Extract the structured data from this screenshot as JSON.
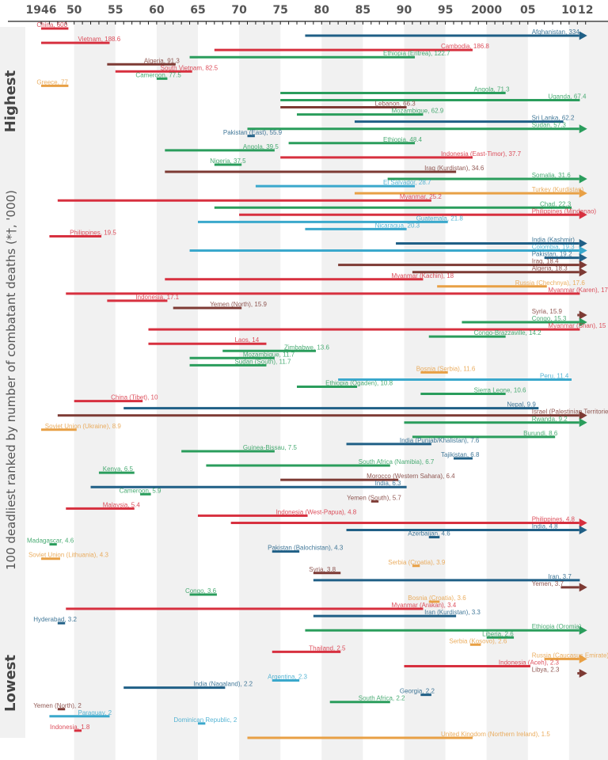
{
  "chart_data": {
    "type": "bar",
    "subtype": "timeline-range",
    "title": "",
    "ylabel": "100 deadliest ranked by number of combatant deaths (*†, '000)",
    "xlabel": "",
    "xlim": [
      1946,
      2012
    ],
    "x_tick_labels": [
      {
        "year": 1946,
        "label": "1946"
      },
      {
        "year": 1950,
        "label": "50"
      },
      {
        "year": 1955,
        "label": "55"
      },
      {
        "year": 1960,
        "label": "60"
      },
      {
        "year": 1965,
        "label": "65"
      },
      {
        "year": 1970,
        "label": "70"
      },
      {
        "year": 1975,
        "label": "75"
      },
      {
        "year": 1980,
        "label": "80"
      },
      {
        "year": 1985,
        "label": "85"
      },
      {
        "year": 1990,
        "label": "90"
      },
      {
        "year": 1995,
        "label": "95"
      },
      {
        "year": 2000,
        "label": "2000"
      },
      {
        "year": 2005,
        "label": "05"
      },
      {
        "year": 2010,
        "label": "10"
      },
      {
        "year": 2012,
        "label": "12"
      }
    ],
    "rank_labels": {
      "top": "Highest",
      "bottom": "Lowest"
    },
    "colors": {
      "red": "#d7303f",
      "green": "#2a9d5c",
      "navy": "#1f5f86",
      "blue": "#3aa8cc",
      "brown": "#7d3a34",
      "orange": "#e8a045",
      "band": "#f1f1f1",
      "axis": "#222222"
    },
    "series": [
      {
        "name": "China",
        "value": 600,
        "start": 1946,
        "end": 1949,
        "ongoing": false,
        "color": "red"
      },
      {
        "name": "Afghanistan",
        "value": 334,
        "start": 1978,
        "end": 2012,
        "ongoing": true,
        "color": "navy"
      },
      {
        "name": "Vietnam",
        "value": 188.6,
        "start": 1946,
        "end": 1954,
        "ongoing": false,
        "color": "red"
      },
      {
        "name": "Cambodia",
        "value": 186.8,
        "start": 1967,
        "end": 1998,
        "ongoing": false,
        "color": "red"
      },
      {
        "name": "Ethiopia (Eritrea)",
        "value": 122.7,
        "start": 1964,
        "end": 1991,
        "ongoing": false,
        "color": "green"
      },
      {
        "name": "Algeria",
        "value": 91.3,
        "start": 1954,
        "end": 1962,
        "ongoing": false,
        "color": "brown"
      },
      {
        "name": "South Vietnam",
        "value": 82.5,
        "start": 1955,
        "end": 1964,
        "ongoing": false,
        "color": "red"
      },
      {
        "name": "Cameroon",
        "value": 77.5,
        "start": 1960,
        "end": 1961,
        "ongoing": false,
        "color": "green"
      },
      {
        "name": "Greece",
        "value": 77,
        "start": 1946,
        "end": 1949,
        "ongoing": false,
        "color": "orange"
      },
      {
        "name": "Angola",
        "value": 71.3,
        "start": 1975,
        "end": 2002,
        "ongoing": false,
        "color": "green"
      },
      {
        "name": "Uganda",
        "value": 67.4,
        "start": 1975,
        "end": 2011,
        "ongoing": false,
        "color": "green"
      },
      {
        "name": "Lebanon",
        "value": 66.3,
        "start": 1975,
        "end": 1990,
        "ongoing": false,
        "color": "brown"
      },
      {
        "name": "Mozambique",
        "value": 62.9,
        "start": 1977,
        "end": 1992,
        "ongoing": false,
        "color": "green"
      },
      {
        "name": "Sri Lanka",
        "value": 62.2,
        "start": 1984,
        "end": 2009,
        "ongoing": false,
        "color": "navy"
      },
      {
        "name": "Sudan",
        "value": 57.3,
        "start": 1971,
        "end": 2012,
        "ongoing": true,
        "color": "green"
      },
      {
        "name": "Pakistan (East)",
        "value": 55.9,
        "start": 1971,
        "end": 1971,
        "ongoing": false,
        "color": "navy"
      },
      {
        "name": "Ethiopia",
        "value": 48.4,
        "start": 1976,
        "end": 1991,
        "ongoing": false,
        "color": "green"
      },
      {
        "name": "Angola",
        "value": 39.5,
        "start": 1961,
        "end": 1974,
        "ongoing": false,
        "color": "green"
      },
      {
        "name": "Indonesia (East-Timor)",
        "value": 37.7,
        "start": 1975,
        "end": 1998,
        "ongoing": false,
        "color": "red"
      },
      {
        "name": "Nigeria",
        "value": 37.5,
        "start": 1967,
        "end": 1970,
        "ongoing": false,
        "color": "green"
      },
      {
        "name": "Iraq (Kurdistan)",
        "value": 34.6,
        "start": 1961,
        "end": 1996,
        "ongoing": false,
        "color": "brown"
      },
      {
        "name": "Somalia",
        "value": 31.6,
        "start": 1988,
        "end": 2012,
        "ongoing": true,
        "color": "green"
      },
      {
        "name": "El Salvador",
        "value": 28.7,
        "start": 1972,
        "end": 1991,
        "ongoing": false,
        "color": "blue"
      },
      {
        "name": "Turkey (Kurdistan)",
        "value": null,
        "start": 1984,
        "end": 2012,
        "ongoing": true,
        "color": "orange"
      },
      {
        "name": "Myanmar",
        "value": 25.2,
        "start": 1948,
        "end": 1993,
        "ongoing": false,
        "color": "red"
      },
      {
        "name": "Chad",
        "value": 22.3,
        "start": 1967,
        "end": 2010,
        "ongoing": false,
        "color": "green"
      },
      {
        "name": "Philippines (Mindanao)",
        "value": null,
        "start": 1970,
        "end": 2012,
        "ongoing": true,
        "color": "red"
      },
      {
        "name": "Guatemala",
        "value": 21.8,
        "start": 1965,
        "end": 1995,
        "ongoing": false,
        "color": "blue"
      },
      {
        "name": "Nicaragua",
        "value": 20.3,
        "start": 1978,
        "end": 1990,
        "ongoing": false,
        "color": "blue"
      },
      {
        "name": "Philippines",
        "value": 19.5,
        "start": 1947,
        "end": 1953,
        "ongoing": false,
        "color": "red"
      },
      {
        "name": "India (Kashmir)",
        "value": null,
        "start": 1989,
        "end": 2012,
        "ongoing": true,
        "color": "navy"
      },
      {
        "name": "Colombia",
        "value": 19.3,
        "start": 1964,
        "end": 2012,
        "ongoing": true,
        "color": "blue"
      },
      {
        "name": "Pakistan",
        "value": 19.2,
        "start": 2007,
        "end": 2012,
        "ongoing": true,
        "color": "navy"
      },
      {
        "name": "Iraq",
        "value": 18.4,
        "start": 1982,
        "end": 2012,
        "ongoing": true,
        "color": "brown"
      },
      {
        "name": "Algeria",
        "value": 18.3,
        "start": 1991,
        "end": 2012,
        "ongoing": true,
        "color": "brown"
      },
      {
        "name": "Myanmar (Kachin)",
        "value": 18,
        "start": 1961,
        "end": 1992,
        "ongoing": false,
        "color": "red"
      },
      {
        "name": "Russia (Chechnya)",
        "value": 17.6,
        "start": 1994,
        "end": 2007,
        "ongoing": false,
        "color": "orange"
      },
      {
        "name": "Myanmar (Karen)",
        "value": 17,
        "start": 1949,
        "end": 2011,
        "ongoing": false,
        "color": "red"
      },
      {
        "name": "Indonesia",
        "value": 17.1,
        "start": 1954,
        "end": 1961,
        "ongoing": false,
        "color": "red"
      },
      {
        "name": "Yemen (North)",
        "value": 15.9,
        "start": 1962,
        "end": 1970,
        "ongoing": false,
        "color": "brown"
      },
      {
        "name": "Syria",
        "value": 15.9,
        "start": 2011,
        "end": 2012,
        "ongoing": true,
        "color": "brown"
      },
      {
        "name": "Congo",
        "value": 15.3,
        "start": 1997,
        "end": 2012,
        "ongoing": true,
        "color": "green"
      },
      {
        "name": "Myanmar (Shan)",
        "value": 15,
        "start": 1959,
        "end": 2011,
        "ongoing": false,
        "color": "red"
      },
      {
        "name": "Congo-Brazzaville",
        "value": 14.2,
        "start": 1993,
        "end": 2002,
        "ongoing": false,
        "color": "green"
      },
      {
        "name": "Laos",
        "value": 14,
        "start": 1959,
        "end": 1973,
        "ongoing": false,
        "color": "red"
      },
      {
        "name": "Zimbabwe",
        "value": 13.6,
        "start": 1968,
        "end": 1979,
        "ongoing": false,
        "color": "green"
      },
      {
        "name": "Mozambique",
        "value": 11.7,
        "start": 1964,
        "end": 1974,
        "ongoing": false,
        "color": "green"
      },
      {
        "name": "Sudan (South)",
        "value": 11.7,
        "start": 1964,
        "end": 1973,
        "ongoing": false,
        "color": "green"
      },
      {
        "name": "Bosnia (Serbia)",
        "value": 11.6,
        "start": 1992,
        "end": 1995,
        "ongoing": false,
        "color": "orange"
      },
      {
        "name": "Peru",
        "value": 11.4,
        "start": 1982,
        "end": 2010,
        "ongoing": false,
        "color": "blue"
      },
      {
        "name": "Ethiopia (Ogaden)",
        "value": 10.8,
        "start": 1977,
        "end": 1984,
        "ongoing": false,
        "color": "green"
      },
      {
        "name": "Sierra Leone",
        "value": 10.6,
        "start": 1992,
        "end": 2002,
        "ongoing": false,
        "color": "green"
      },
      {
        "name": "China (Tibet)",
        "value": 10,
        "start": 1950,
        "end": 1958,
        "ongoing": false,
        "color": "red"
      },
      {
        "name": "Nepal",
        "value": 9.9,
        "start": 1956,
        "end": 2006,
        "ongoing": false,
        "color": "navy"
      },
      {
        "name": "Israel (Palestinian Territories)",
        "value": null,
        "start": 1948,
        "end": 2012,
        "ongoing": true,
        "color": "brown"
      },
      {
        "name": "Rwanda",
        "value": 9.2,
        "start": 1990,
        "end": 2012,
        "ongoing": true,
        "color": "green"
      },
      {
        "name": "Soviet Union (Ukraine)",
        "value": 8.9,
        "start": 1946,
        "end": 1950,
        "ongoing": false,
        "color": "orange"
      },
      {
        "name": "Burundi",
        "value": 8.6,
        "start": 1991,
        "end": 2008,
        "ongoing": false,
        "color": "green"
      },
      {
        "name": "India (Punjab/Khalistan)",
        "value": 7.6,
        "start": 1983,
        "end": 1993,
        "ongoing": false,
        "color": "navy"
      },
      {
        "name": "Guinea-Bissau",
        "value": 7.5,
        "start": 1963,
        "end": 1974,
        "ongoing": false,
        "color": "green"
      },
      {
        "name": "Tajikistan",
        "value": 6.8,
        "start": 1996,
        "end": 1998,
        "ongoing": false,
        "color": "navy"
      },
      {
        "name": "South Africa (Namibia)",
        "value": 6.7,
        "start": 1966,
        "end": 1988,
        "ongoing": false,
        "color": "green"
      },
      {
        "name": "Kenya",
        "value": 6.5,
        "start": 1953,
        "end": 1957,
        "ongoing": false,
        "color": "green"
      },
      {
        "name": "Morocco (Western Sahara)",
        "value": 6.4,
        "start": 1975,
        "end": 1989,
        "ongoing": false,
        "color": "brown"
      },
      {
        "name": "India",
        "value": 6.3,
        "start": 1952,
        "end": 1990,
        "ongoing": false,
        "color": "navy"
      },
      {
        "name": "Cameroon",
        "value": 5.9,
        "start": 1958,
        "end": 1959,
        "ongoing": false,
        "color": "green"
      },
      {
        "name": "Yemen (South)",
        "value": 5.7,
        "start": 1986,
        "end": 1986,
        "ongoing": false,
        "color": "brown"
      },
      {
        "name": "Malaysia",
        "value": 5.4,
        "start": 1949,
        "end": 1957,
        "ongoing": false,
        "color": "red"
      },
      {
        "name": "Indonesia (West-Papua)",
        "value": 4.8,
        "start": 1965,
        "end": 1978,
        "ongoing": false,
        "color": "red"
      },
      {
        "name": "Philippines",
        "value": 4.8,
        "start": 1969,
        "end": 2012,
        "ongoing": true,
        "color": "red"
      },
      {
        "name": "India",
        "value": 4.8,
        "start": 1983,
        "end": 2012,
        "ongoing": true,
        "color": "navy"
      },
      {
        "name": "Azerbaijan",
        "value": 4.6,
        "start": 1993,
        "end": 1994,
        "ongoing": false,
        "color": "navy"
      },
      {
        "name": "Madagascar",
        "value": 4.6,
        "start": 1947,
        "end": 1947,
        "ongoing": false,
        "color": "green"
      },
      {
        "name": "Pakistan (Balochistan)",
        "value": 4.3,
        "start": 1974,
        "end": 1977,
        "ongoing": false,
        "color": "navy"
      },
      {
        "name": "Soviet Union (Lithuania)",
        "value": 4.3,
        "start": 1946,
        "end": 1948,
        "ongoing": false,
        "color": "orange"
      },
      {
        "name": "Serbia (Croatia)",
        "value": 3.9,
        "start": 1991,
        "end": 1991,
        "ongoing": false,
        "color": "orange"
      },
      {
        "name": "Syria",
        "value": 3.8,
        "start": 1979,
        "end": 1982,
        "ongoing": false,
        "color": "brown"
      },
      {
        "name": "Iran",
        "value": 3.7,
        "start": 1979,
        "end": 2011,
        "ongoing": false,
        "color": "navy"
      },
      {
        "name": "Yemen",
        "value": 3.7,
        "start": 2009,
        "end": 2012,
        "ongoing": true,
        "color": "brown"
      },
      {
        "name": "Congo",
        "value": 3.6,
        "start": 1964,
        "end": 1967,
        "ongoing": false,
        "color": "green"
      },
      {
        "name": "Bosnia (Croatia)",
        "value": 3.6,
        "start": 1993,
        "end": 1994,
        "ongoing": false,
        "color": "orange"
      },
      {
        "name": "Myanmar (Arakan)",
        "value": 3.4,
        "start": 1949,
        "end": 1992,
        "ongoing": false,
        "color": "red"
      },
      {
        "name": "Iran (Kurdistan)",
        "value": 3.3,
        "start": 1979,
        "end": 1996,
        "ongoing": false,
        "color": "navy"
      },
      {
        "name": "Hyderabad",
        "value": 3.2,
        "start": 1948,
        "end": 1948,
        "ongoing": false,
        "color": "navy"
      },
      {
        "name": "Ethiopia (Oromia)",
        "value": null,
        "start": 1978,
        "end": 2012,
        "ongoing": true,
        "color": "green"
      },
      {
        "name": "Liberia",
        "value": 2.6,
        "start": 2000,
        "end": 2003,
        "ongoing": false,
        "color": "green"
      },
      {
        "name": "Serbia (Kosovo)",
        "value": 2.6,
        "start": 1998,
        "end": 1999,
        "ongoing": false,
        "color": "orange"
      },
      {
        "name": "Thailand",
        "value": 2.5,
        "start": 1974,
        "end": 1982,
        "ongoing": false,
        "color": "red"
      },
      {
        "name": "Russia (Caucasus Emirate)",
        "value": null,
        "start": 2007,
        "end": 2012,
        "ongoing": true,
        "color": "orange"
      },
      {
        "name": "Indonesia (Aceh)",
        "value": 2.3,
        "start": 1990,
        "end": 2005,
        "ongoing": false,
        "color": "red"
      },
      {
        "name": "Libya",
        "value": 2.3,
        "start": 2011,
        "end": 2012,
        "ongoing": true,
        "color": "brown"
      },
      {
        "name": "Argentina",
        "value": 2.3,
        "start": 1974,
        "end": 1977,
        "ongoing": false,
        "color": "blue"
      },
      {
        "name": "India (Nagaland)",
        "value": 2.2,
        "start": 1956,
        "end": 1968,
        "ongoing": false,
        "color": "navy"
      },
      {
        "name": "Georgia",
        "value": 2.2,
        "start": 1992,
        "end": 1993,
        "ongoing": false,
        "color": "navy"
      },
      {
        "name": "South Africa",
        "value": 2.2,
        "start": 1981,
        "end": 1988,
        "ongoing": false,
        "color": "green"
      },
      {
        "name": "Yemen (North)",
        "value": 2,
        "start": 1948,
        "end": 1948,
        "ongoing": false,
        "color": "brown"
      },
      {
        "name": "Paraguay",
        "value": 2,
        "start": 1947,
        "end": 1954,
        "ongoing": false,
        "color": "blue"
      },
      {
        "name": "Dominican Republic",
        "value": 2,
        "start": 1965,
        "end": 1965,
        "ongoing": false,
        "color": "blue"
      },
      {
        "name": "Indonesia",
        "value": 1.8,
        "start": 1950,
        "end": 1950,
        "ongoing": false,
        "color": "red"
      },
      {
        "name": "United Kingdom (Northern Ireland)",
        "value": 1.5,
        "start": 1971,
        "end": 1998,
        "ongoing": false,
        "color": "orange"
      }
    ]
  }
}
